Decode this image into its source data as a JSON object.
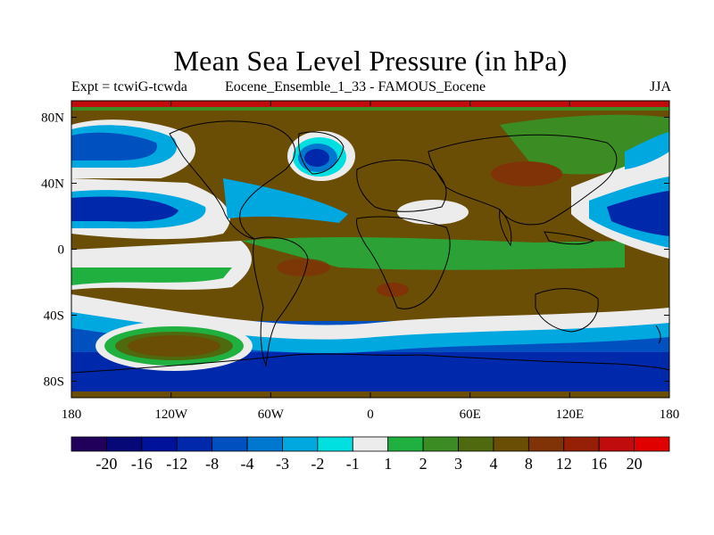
{
  "header": {
    "title": "Mean Sea Level Pressure (in hPa)",
    "left_subtitle": "Expt = tcwiG-tcwda",
    "center_subtitle": "Eocene_Ensemble_1_33 - FAMOUS_Eocene",
    "right_subtitle": "JJA"
  },
  "map": {
    "lon_range": [
      -180,
      180
    ],
    "lat_range": [
      -90,
      90
    ],
    "x_ticks": [
      {
        "value": -180,
        "label": "180"
      },
      {
        "value": -120,
        "label": "120W"
      },
      {
        "value": -60,
        "label": "60W"
      },
      {
        "value": 0,
        "label": "0"
      },
      {
        "value": 60,
        "label": "60E"
      },
      {
        "value": 120,
        "label": "120E"
      },
      {
        "value": 180,
        "label": "180"
      }
    ],
    "y_ticks": [
      {
        "value": 80,
        "label": "80N"
      },
      {
        "value": 40,
        "label": "40N"
      },
      {
        "value": 0,
        "label": "0"
      },
      {
        "value": -40,
        "label": "40S"
      },
      {
        "value": -80,
        "label": "80S"
      }
    ],
    "coastlines": "black outlines"
  },
  "colorbar": {
    "colors": [
      "#20005a",
      "#060878",
      "#00129a",
      "#0028aa",
      "#0050bf",
      "#0078d0",
      "#00a8e0",
      "#00e0e0",
      "#ececec",
      "#20b040",
      "#3c8c24",
      "#4f6a0e",
      "#6a4e06",
      "#7f3306",
      "#962006",
      "#c00c0c",
      "#e00000"
    ],
    "labels": [
      "-20",
      "-16",
      "-12",
      "-8",
      "-4",
      "-3",
      "-2",
      "-1",
      "1",
      "2",
      "3",
      "4",
      "8",
      "12",
      "16",
      "20"
    ]
  }
}
